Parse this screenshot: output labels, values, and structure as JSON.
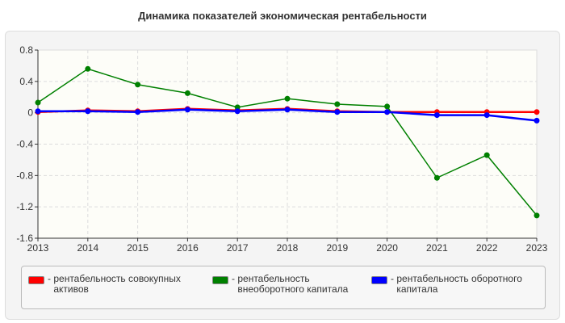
{
  "chart_data": {
    "type": "line",
    "title": "Динамика показателей экономическая рентабельности",
    "categories": [
      "2013",
      "2014",
      "2015",
      "2016",
      "2017",
      "2018",
      "2019",
      "2020",
      "2021",
      "2022",
      "2023"
    ],
    "ylim": [
      -1.6,
      0.8
    ],
    "yticks": [
      "0.8",
      "0.4",
      "0",
      "-0.4",
      "-0.8",
      "-1.2",
      "-1.6"
    ],
    "grid": true,
    "legend_position": "bottom",
    "series": [
      {
        "name": "рентабельность совокупных активов",
        "color": "#ff0000",
        "values": [
          0.01,
          0.03,
          0.02,
          0.05,
          0.03,
          0.05,
          0.02,
          0.01,
          0.01,
          0.01,
          0.01
        ]
      },
      {
        "name": "рентабельность внеоборотного капитала",
        "color": "#008000",
        "values": [
          0.13,
          0.56,
          0.36,
          0.25,
          0.07,
          0.18,
          0.11,
          0.08,
          -0.83,
          -0.54,
          -1.31
        ]
      },
      {
        "name": "рентабельность оборотного капитала",
        "color": "#0000ff",
        "values": [
          0.02,
          0.02,
          0.01,
          0.04,
          0.02,
          0.04,
          0.01,
          0.01,
          -0.03,
          -0.03,
          -0.1
        ]
      }
    ]
  },
  "legend_prefix": "- "
}
